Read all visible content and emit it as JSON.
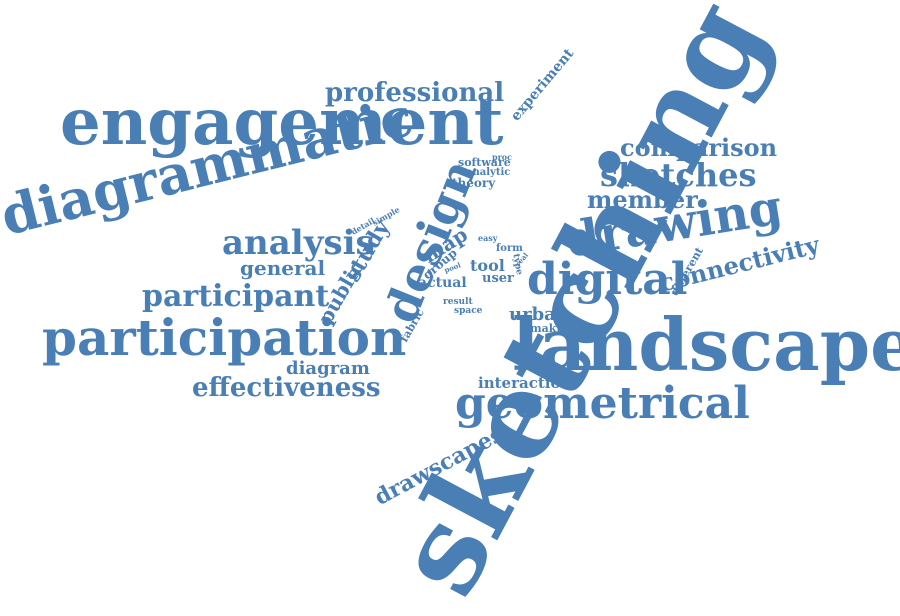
{
  "cloud": {
    "color": "#4a7fb5",
    "words": [
      {
        "text": "sketching"
      },
      {
        "text": "landscape"
      },
      {
        "text": "engagement"
      },
      {
        "text": "diagrammatic"
      },
      {
        "text": "participation"
      },
      {
        "text": "drawing"
      },
      {
        "text": "geometrical"
      },
      {
        "text": "design"
      },
      {
        "text": "digital"
      },
      {
        "text": "professional"
      },
      {
        "text": "comparison"
      },
      {
        "text": "sketches"
      },
      {
        "text": "member"
      },
      {
        "text": "analysis"
      },
      {
        "text": "participant"
      },
      {
        "text": "effectiveness"
      },
      {
        "text": "connectivity"
      },
      {
        "text": "drawscapes"
      },
      {
        "text": "general"
      },
      {
        "text": "study"
      },
      {
        "text": "public"
      },
      {
        "text": "map"
      },
      {
        "text": "diagram"
      },
      {
        "text": "interaction"
      },
      {
        "text": "urban"
      },
      {
        "text": "experiment"
      },
      {
        "text": "software"
      },
      {
        "text": "analytic"
      },
      {
        "text": "theory"
      },
      {
        "text": "group"
      },
      {
        "text": "tool"
      },
      {
        "text": "user"
      },
      {
        "text": "actual"
      },
      {
        "text": "different"
      },
      {
        "text": "making"
      },
      {
        "text": "fabric"
      },
      {
        "text": "result"
      },
      {
        "text": "space"
      },
      {
        "text": "form"
      },
      {
        "text": "easy"
      },
      {
        "text": "type"
      },
      {
        "text": "detail"
      },
      {
        "text": "simple"
      },
      {
        "text": "proc"
      },
      {
        "text": "real"
      },
      {
        "text": "pool"
      }
    ]
  }
}
